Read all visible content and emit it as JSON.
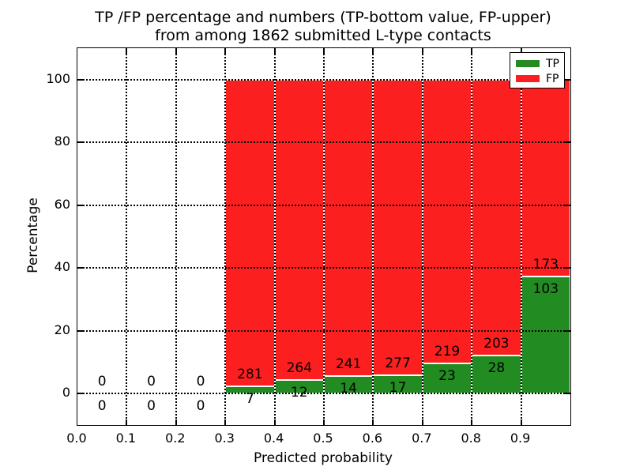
{
  "figure": {
    "title_line1": "TP /FP percentage and numbers (TP-bottom value, FP-upper)",
    "title_line2": "from among 1862 submitted L-type contacts"
  },
  "chart_data": {
    "type": "bar",
    "stacked": true,
    "title": "TP /FP percentage and numbers (TP-bottom value, FP-upper)\nfrom among 1862 submitted L-type contacts",
    "xlabel": "Predicted probability",
    "ylabel": "Percentage",
    "xlim": [
      0.0,
      1.0
    ],
    "ylim": [
      -10,
      110
    ],
    "xticks": [
      0.0,
      0.1,
      0.2,
      0.3,
      0.4,
      0.5,
      0.6,
      0.7,
      0.8,
      0.9
    ],
    "xtick_labels": [
      "0.0",
      "0.1",
      "0.2",
      "0.3",
      "0.4",
      "0.5",
      "0.6",
      "0.7",
      "0.8",
      "0.9"
    ],
    "yticks": [
      0,
      20,
      40,
      60,
      80,
      100
    ],
    "ytick_labels": [
      "0",
      "20",
      "40",
      "60",
      "80",
      "100"
    ],
    "grid": "dotted",
    "bar_edge_color": "#ffffff",
    "total_submitted": 1862,
    "bin_width": 0.1,
    "legend": {
      "position": "upper right",
      "entries": [
        {
          "label": "TP",
          "color": "#228B22"
        },
        {
          "label": "FP",
          "color": "#FB1F1F"
        }
      ]
    },
    "bins": [
      {
        "center": 0.05,
        "tp": 0,
        "fp": 0,
        "tp_pct": 0,
        "fp_pct": 0
      },
      {
        "center": 0.15,
        "tp": 0,
        "fp": 0,
        "tp_pct": 0,
        "fp_pct": 0
      },
      {
        "center": 0.25,
        "tp": 0,
        "fp": 0,
        "tp_pct": 0,
        "fp_pct": 0
      },
      {
        "center": 0.35,
        "tp": 7,
        "fp": 281,
        "tp_pct": 2.43,
        "fp_pct": 97.57
      },
      {
        "center": 0.45,
        "tp": 12,
        "fp": 264,
        "tp_pct": 4.35,
        "fp_pct": 95.65
      },
      {
        "center": 0.55,
        "tp": 14,
        "fp": 241,
        "tp_pct": 5.49,
        "fp_pct": 94.51
      },
      {
        "center": 0.65,
        "tp": 17,
        "fp": 277,
        "tp_pct": 5.78,
        "fp_pct": 94.22
      },
      {
        "center": 0.75,
        "tp": 23,
        "fp": 219,
        "tp_pct": 9.5,
        "fp_pct": 90.5
      },
      {
        "center": 0.85,
        "tp": 28,
        "fp": 203,
        "tp_pct": 12.12,
        "fp_pct": 87.88
      },
      {
        "center": 0.95,
        "tp": 103,
        "fp": 173,
        "tp_pct": 37.32,
        "fp_pct": 62.68
      }
    ],
    "series": [
      {
        "name": "TP",
        "values": [
          0,
          0,
          0,
          7,
          12,
          14,
          17,
          23,
          28,
          103
        ]
      },
      {
        "name": "FP",
        "values": [
          0,
          0,
          0,
          281,
          264,
          241,
          277,
          219,
          203,
          173
        ]
      }
    ]
  }
}
